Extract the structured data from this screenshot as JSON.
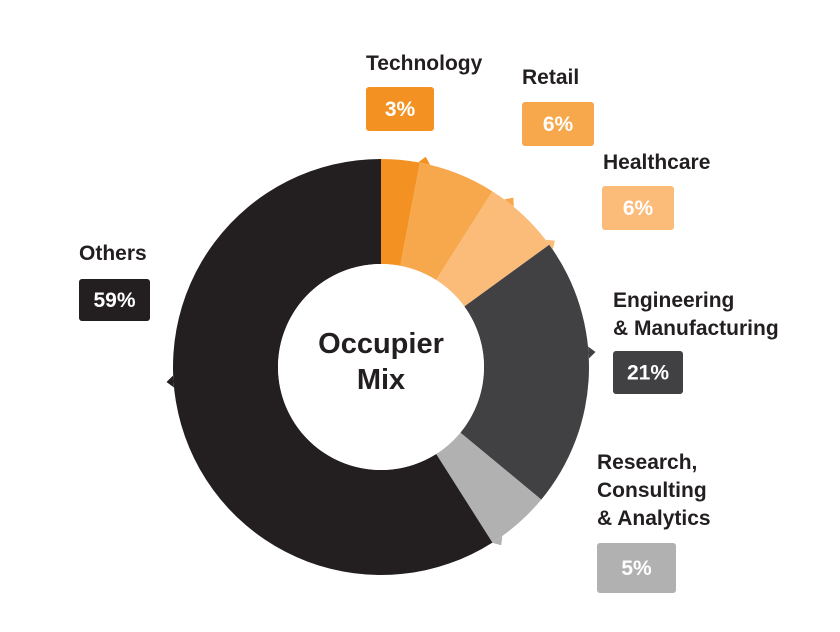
{
  "chart_data": {
    "type": "pie",
    "center_label": [
      "Occupier",
      "Mix"
    ],
    "colors": {
      "technology": "#F39223",
      "retail": "#F8A84C",
      "healthcare": "#FBBC7A",
      "engineering": "#414042",
      "research": "#B1B1B1",
      "others": "#231F20",
      "background": "#FFFFFF",
      "badge_text": "#FFFFFF",
      "label_text": "#231F20"
    },
    "slices": [
      {
        "key": "technology",
        "label_lines": [
          "Technology"
        ],
        "value": 3,
        "display": "3%",
        "color": "#F39223"
      },
      {
        "key": "retail",
        "label_lines": [
          "Retail"
        ],
        "value": 6,
        "display": "6%",
        "color": "#F8A84C"
      },
      {
        "key": "healthcare",
        "label_lines": [
          "Healthcare"
        ],
        "value": 6,
        "display": "6%",
        "color": "#FBBC7A"
      },
      {
        "key": "engineering",
        "label_lines": [
          "Engineering",
          "& Manufacturing"
        ],
        "value": 21,
        "display": "21%",
        "color": "#414042"
      },
      {
        "key": "research",
        "label_lines": [
          "Research,",
          "Consulting",
          "& Analytics"
        ],
        "value": 5,
        "display": "5%",
        "color": "#B1B1B1"
      },
      {
        "key": "others",
        "label_lines": [
          "Others"
        ],
        "value": 59,
        "display": "59%",
        "color": "#231F20"
      }
    ]
  }
}
